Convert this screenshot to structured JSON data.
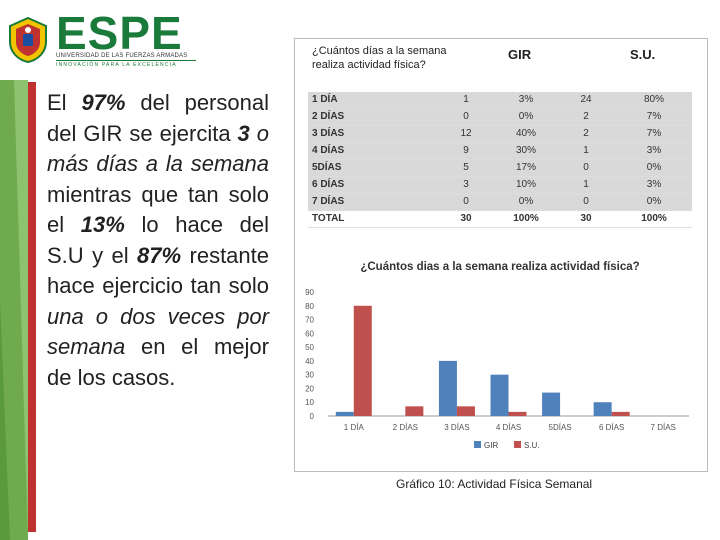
{
  "logo": {
    "name": "ESPE",
    "subtitle": "UNIVERSIDAD DE LAS FUERZAS ARMADAS",
    "tagline": "INNOVACIÓN PARA LA EXCELENCIA"
  },
  "left_text": {
    "p1": "El ",
    "p1b": "97%",
    "p2": " del personal del GIR se ejercita ",
    "p2b": "3",
    "p3i": " o más días a la semana",
    "p4": " mientras que tan solo el ",
    "p4b": "13%",
    "p5": " lo hace del S.U y el ",
    "p5b": "87%",
    "p6": " restante hace ejercicio tan solo ",
    "p6i": "una o dos veces por semana",
    "p7": " en el mejor de los casos."
  },
  "table": {
    "question_line1": "¿Cuántos días a la semana",
    "question_line2": "realiza actividad física?",
    "col_gir": "GIR",
    "col_su": "S.U.",
    "rows": [
      {
        "label": "1 DÍA",
        "g": "1",
        "gp": "3%",
        "s": "24",
        "sp": "80%"
      },
      {
        "label": "2 DÍAS",
        "g": "0",
        "gp": "0%",
        "s": "2",
        "sp": "7%"
      },
      {
        "label": "3 DÍAS",
        "g": "12",
        "gp": "40%",
        "s": "2",
        "sp": "7%"
      },
      {
        "label": "4 DÍAS",
        "g": "9",
        "gp": "30%",
        "s": "1",
        "sp": "3%"
      },
      {
        "label": "5DÍAS",
        "g": "5",
        "gp": "17%",
        "s": "0",
        "sp": "0%"
      },
      {
        "label": "6 DÍAS",
        "g": "3",
        "gp": "10%",
        "s": "1",
        "sp": "3%"
      },
      {
        "label": "7 DÍAS",
        "g": "0",
        "gp": "0%",
        "s": "0",
        "sp": "0%"
      }
    ],
    "total": {
      "label": "TOTAL",
      "g": "30",
      "gp": "100%",
      "s": "30",
      "sp": "100%"
    }
  },
  "chart_data": {
    "type": "bar",
    "title": "¿Cuántos dias a la semana realiza actividad física?",
    "categories": [
      "1 DÍA",
      "2 DÍAS",
      "3 DÍAS",
      "4 DÍAS",
      "5DÍAS",
      "6 DÍAS",
      "7 DÍAS"
    ],
    "series": [
      {
        "name": "GIR",
        "values": [
          3,
          0,
          40,
          30,
          17,
          10,
          0
        ],
        "color": "#4f81bd"
      },
      {
        "name": "S.U.",
        "values": [
          80,
          7,
          7,
          3,
          0,
          3,
          0
        ],
        "color": "#c0504d"
      }
    ],
    "ylim": [
      0,
      90
    ],
    "yticks": [
      "0",
      "10",
      "20",
      "30",
      "40",
      "50",
      "60",
      "70",
      "80",
      "90"
    ],
    "grid": false,
    "legend": "bottom"
  },
  "caption": "Gráfico 10: Actividad Física Semanal"
}
